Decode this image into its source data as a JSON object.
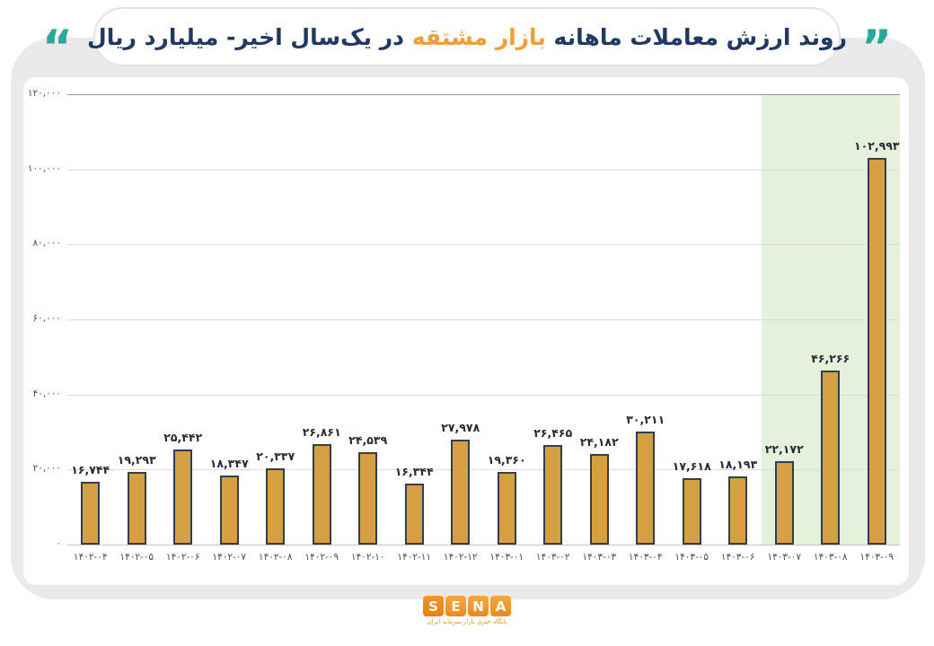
{
  "title": {
    "part_right": "روند ارزش معاملات ماهانه",
    "part_highlight": "بازار مشتقه",
    "part_left": "در یک‌سال اخیر- میلیارد ریال",
    "open_quote_glyph": "”",
    "close_quote_glyph": "“",
    "accent_color": "#F09C38",
    "text_color": "#203864",
    "quote_color": "#2BA899"
  },
  "chart_data": {
    "type": "bar",
    "title": "روند ارزش معاملات ماهانه بازار مشتقه در یک‌سال اخیر- میلیارد ریال",
    "xlabel": "",
    "ylabel": "میلیارد ریال",
    "ylim": [
      0,
      120000
    ],
    "ytick_step": 20000,
    "grid": true,
    "legend": "none",
    "categories": [
      "۱۴۰۲-۰۴",
      "۱۴۰۲-۰۵",
      "۱۴۰۲-۰۶",
      "۱۴۰۲-۰۷",
      "۱۴۰۲-۰۸",
      "۱۴۰۲-۰۹",
      "۱۴۰۲-۱۰",
      "۱۴۰۲-۱۱",
      "۱۴۰۲-۱۲",
      "۱۴۰۳-۰۱",
      "۱۴۰۳-۰۲",
      "۱۴۰۳-۰۳",
      "۱۴۰۳-۰۴",
      "۱۴۰۳-۰۵",
      "۱۴۰۳-۰۶",
      "۱۴۰۳-۰۷",
      "۱۴۰۳-۰۸",
      "۱۴۰۳-۰۹"
    ],
    "categories_latin": [
      "1402-04",
      "1402-05",
      "1402-06",
      "1402-07",
      "1402-08",
      "1402-09",
      "1402-10",
      "1402-11",
      "1402-12",
      "1403-01",
      "1403-02",
      "1403-03",
      "1403-04",
      "1403-05",
      "1403-06",
      "1403-07",
      "1403-08",
      "1403-09"
    ],
    "values": [
      16744,
      19293,
      25442,
      18347,
      20337,
      26861,
      24539,
      16344,
      27978,
      19360,
      26465,
      24182,
      30211,
      17618,
      18193,
      22172,
      46266,
      102993
    ],
    "value_labels": [
      "۱۶,۷۴۴",
      "۱۹,۲۹۳",
      "۲۵,۴۴۲",
      "۱۸,۳۴۷",
      "۲۰,۳۳۷",
      "۲۶,۸۶۱",
      "۲۴,۵۳۹",
      "۱۶,۳۴۴",
      "۲۷,۹۷۸",
      "۱۹,۳۶۰",
      "۲۶,۴۶۵",
      "۲۴,۱۸۲",
      "۳۰,۲۱۱",
      "۱۷,۶۱۸",
      "۱۸,۱۹۳",
      "۲۲,۱۷۲",
      "۴۶,۲۶۶",
      "۱۰۲,۹۹۳"
    ],
    "ytick_labels_top_to_bottom": [
      "۱۲۰,۰۰۰",
      "۱۰۰,۰۰۰",
      "۸۰,۰۰۰",
      "۶۰,۰۰۰",
      "۴۰,۰۰۰",
      "۲۰,۰۰۰",
      "۰"
    ],
    "highlight_last_n": 3,
    "bar_color": "#D4A042",
    "bar_border_color": "#333D4D",
    "highlight_color": "#E4F1DB"
  },
  "footer": {
    "logo_letters": [
      "S",
      "E",
      "N",
      "A"
    ],
    "tagline": "پایگاه خبری بازار سرمایه ایران",
    "logo_color": "#F0941E"
  }
}
